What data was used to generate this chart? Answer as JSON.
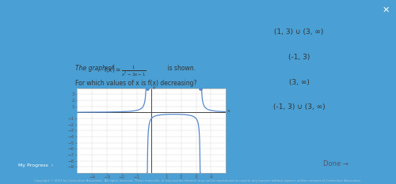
{
  "bg_color": "#4a9fd4",
  "panel_color": "#eef2f7",
  "panel_border": "#c8d4e0",
  "graph_bg": "#ffffff",
  "choices": [
    "(1, 3) ∪ (3, ∞)",
    "(-1, 3)",
    "(3, ∞)",
    "(-1, 3) ∪ (3, ∞)"
  ],
  "choice_bg": "#ffffff",
  "choice_border": "#a0b8d0",
  "done_bg": "#c8d8e8",
  "done_text": "Done →",
  "axis_color": "#444444",
  "curve_color": "#5588cc",
  "grid_color": "#dddddd",
  "xlim": [
    -5,
    5
  ],
  "ylim": [
    -10,
    4
  ],
  "x_ticks": [
    -4,
    -3,
    -2,
    -1,
    1,
    2,
    3,
    4
  ],
  "y_ticks": [
    -9,
    -8,
    -7,
    -6,
    -5,
    -4,
    -3,
    -2,
    -1,
    1,
    2,
    3
  ],
  "close_color": "#999999"
}
